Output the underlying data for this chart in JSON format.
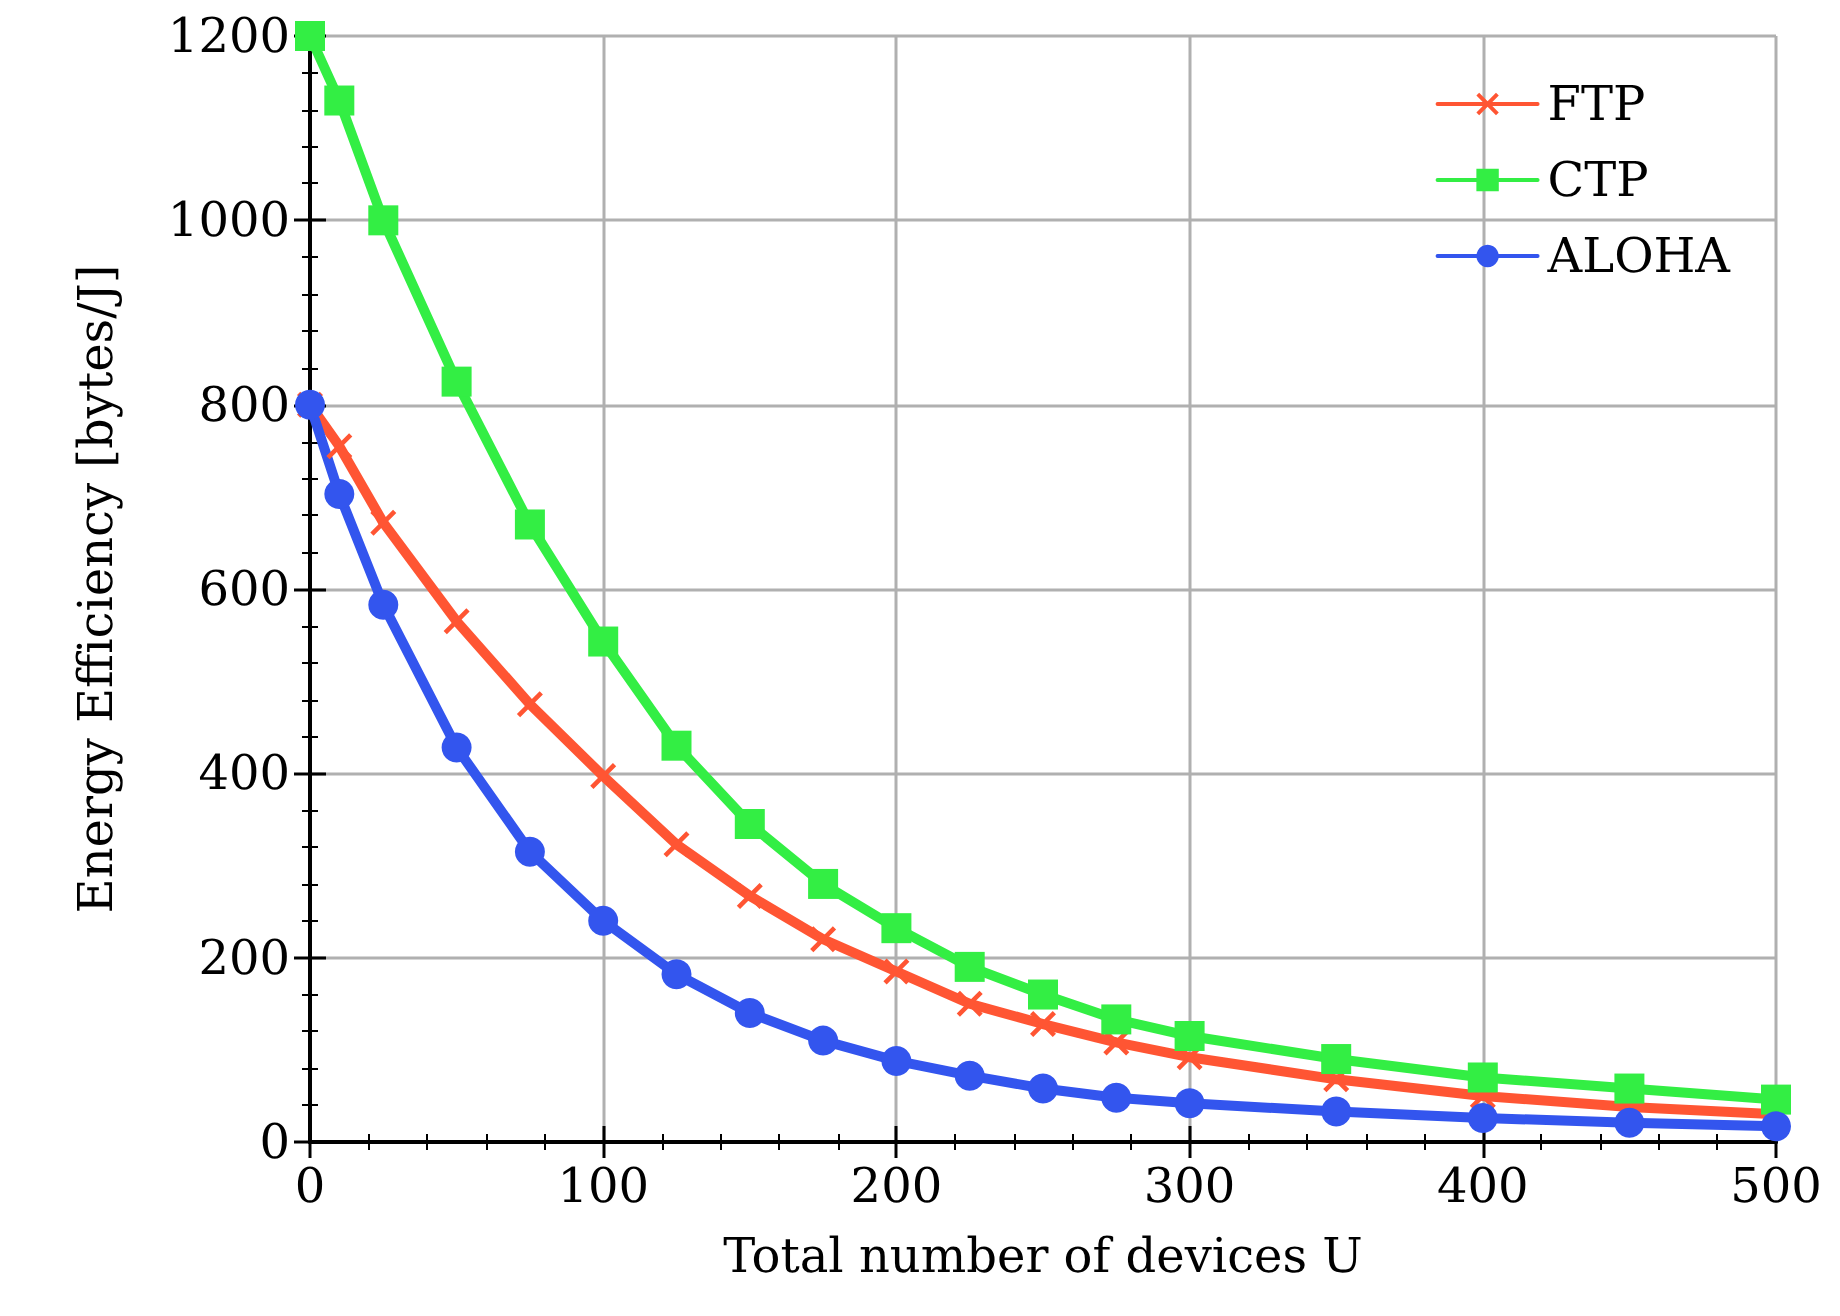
{
  "chart_data": {
    "type": "line",
    "xlabel": "Total number of devices U",
    "ylabel": "Energy Efficiency [bytes/J]",
    "x": [
      0,
      10,
      25,
      50,
      75,
      100,
      125,
      150,
      175,
      200,
      225,
      250,
      275,
      300,
      350,
      400,
      450,
      500
    ],
    "series": [
      {
        "name": "FTP",
        "color": "#ff5533",
        "marker": "cross",
        "values": [
          800,
          755,
          672,
          565,
          475,
          397,
          323,
          267,
          220,
          185,
          150,
          128,
          108,
          92,
          68,
          50,
          38,
          30
        ]
      },
      {
        "name": "CTP",
        "color": "#33ee44",
        "marker": "square",
        "values": [
          1200,
          1130,
          1000,
          825,
          670,
          543,
          430,
          345,
          280,
          232,
          190,
          160,
          133,
          115,
          90,
          70,
          58,
          46
        ]
      },
      {
        "name": "ALOHA",
        "color": "#3355ee",
        "marker": "circle",
        "values": [
          800,
          703,
          583,
          428,
          315,
          240,
          182,
          140,
          110,
          88,
          72,
          58,
          48,
          42,
          33,
          26,
          21,
          17
        ]
      }
    ],
    "xlim": [
      0,
      500
    ],
    "xticks": [
      0,
      100,
      200,
      300,
      400,
      500
    ],
    "ylim": [
      0,
      1200
    ],
    "yticks": [
      0,
      200,
      400,
      600,
      800,
      1000,
      1200
    ],
    "grid": true,
    "legend": "top right",
    "line_style": "solid"
  }
}
